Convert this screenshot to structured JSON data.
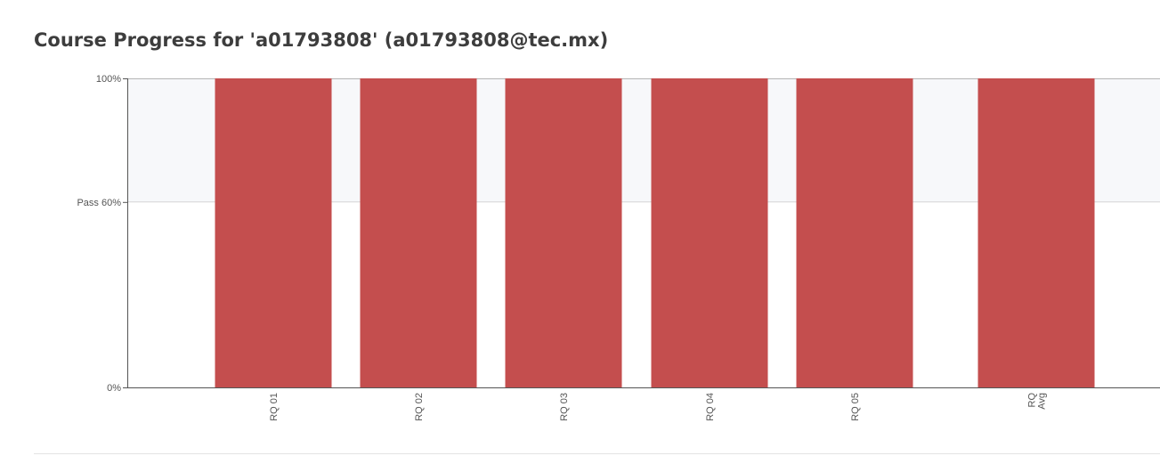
{
  "page": {
    "title": "Course Progress for 'a01793808' (a01793808@tec.mx)"
  },
  "chart_data": {
    "type": "bar",
    "categories": [
      [
        "RQ 01"
      ],
      [
        "RQ 02"
      ],
      [
        "RQ 03"
      ],
      [
        "RQ 04"
      ],
      [
        "RQ 05"
      ],
      [
        "RQ",
        "Avg"
      ]
    ],
    "values": [
      100,
      100,
      100,
      100,
      100,
      100
    ],
    "ylim": [
      0,
      100
    ],
    "y_ticks": [
      {
        "value": 0,
        "label": "0%"
      },
      {
        "value": 60,
        "label": "Pass 60%"
      },
      {
        "value": 100,
        "label": "100%"
      }
    ],
    "pass_threshold": 60,
    "pass_band_color": "#f7f8fa",
    "bar_color": "#c44e4e",
    "grid": false,
    "legend": "none"
  }
}
